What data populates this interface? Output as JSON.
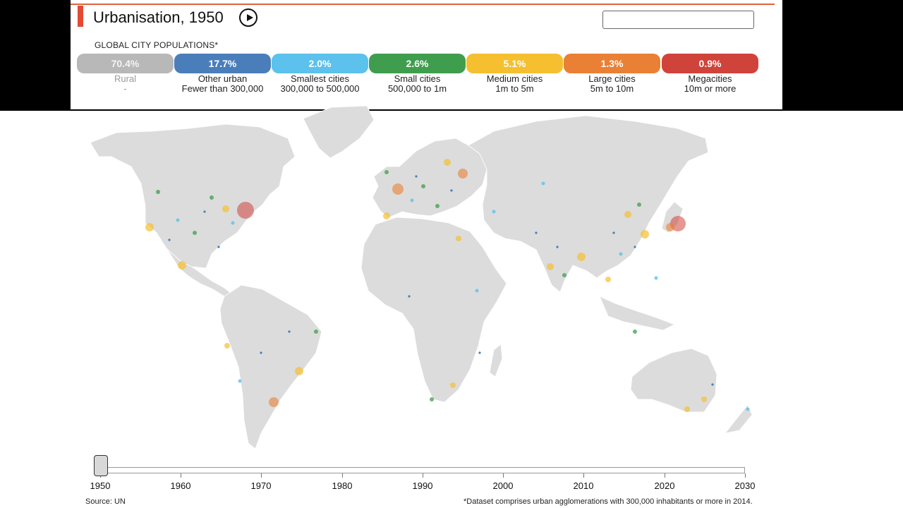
{
  "header": {
    "title": "Urbanisation, 1950",
    "search_value": ""
  },
  "legend": {
    "section_label": "GLOBAL CITY POPULATIONS*",
    "categories": [
      {
        "percent": "70.4%",
        "name": "Rural",
        "range": "-",
        "color": "#b8b8b8"
      },
      {
        "percent": "17.7%",
        "name": "Other urban",
        "range": "Fewer than 300,000",
        "color": "#4a7ebb"
      },
      {
        "percent": "2.0%",
        "name": "Smallest cities",
        "range": "300,000 to 500,000",
        "color": "#5cc1ec"
      },
      {
        "percent": "2.6%",
        "name": "Small cities",
        "range": "500,000 to 1m",
        "color": "#3f9e4e"
      },
      {
        "percent": "5.1%",
        "name": "Medium cities",
        "range": "1m to 5m",
        "color": "#f5bf2f"
      },
      {
        "percent": "1.3%",
        "name": "Large cities",
        "range": "5m to 10m",
        "color": "#ea8035"
      },
      {
        "percent": "0.9%",
        "name": "Megacities",
        "range": "10m or more",
        "color": "#d0433b"
      }
    ]
  },
  "timeline": {
    "ticks": [
      "1950",
      "1960",
      "1970",
      "1980",
      "1990",
      "2000",
      "2010",
      "2020",
      "2030"
    ],
    "selected_year": "1950"
  },
  "footer": {
    "source": "Source: UN",
    "footnote": "*Dataset comprises urban agglomerations with 300,000 inhabitants or more in 2014."
  }
}
